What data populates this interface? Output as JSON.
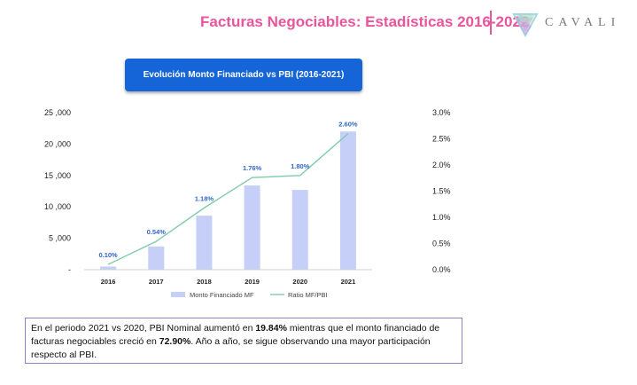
{
  "header": {
    "title": "Facturas Negociables: Estadísticas 2016-2022",
    "separator": "|",
    "brand": "CAVALI",
    "logo_icon": "cavali-diamond-logo",
    "title_color": "#e8559c"
  },
  "chart_data": {
    "type": "bar",
    "title": "Evolución Monto Financiado vs PBI (2016-2021)",
    "categories": [
      "2016",
      "2017",
      "2018",
      "2019",
      "2020",
      "2021"
    ],
    "series": [
      {
        "name": "Monto Financiado MF",
        "type": "bar",
        "axis": "left",
        "color": "#c5cff7",
        "values": [
          500,
          3700,
          8600,
          13400,
          12700,
          22000
        ]
      },
      {
        "name": "Ratio MF/PBI",
        "type": "line",
        "axis": "right",
        "color": "#7fcca7",
        "values": [
          0.1,
          0.54,
          1.18,
          1.76,
          1.8,
          2.6
        ],
        "labels": [
          "0.10%",
          "0.54%",
          "1.18%",
          "1.76%",
          "1.80%",
          "2.60%"
        ]
      }
    ],
    "y_left": {
      "ylim": [
        0,
        25000
      ],
      "ticks": [
        "-",
        "5 ,000",
        "10 ,000",
        "15 ,000",
        "20 ,000",
        "25 ,000"
      ]
    },
    "y_right": {
      "ylim": [
        0,
        3.0
      ],
      "ticks": [
        "0.0%",
        "0.5%",
        "1.0%",
        "1.5%",
        "2.0%",
        "2.5%",
        "3.0%"
      ]
    },
    "grid": false,
    "legend_position": "bottom-center"
  },
  "note": {
    "t1": "En el periodo 2021 vs 2020, PBI Nominal aumentó en ",
    "b1": "19.84%",
    "t2": " mientras que el monto financiado de facturas negociables creció en ",
    "b2": "72.90%",
    "t3": ". Año a año, se sigue observando una mayor participación respecto al PBI."
  }
}
